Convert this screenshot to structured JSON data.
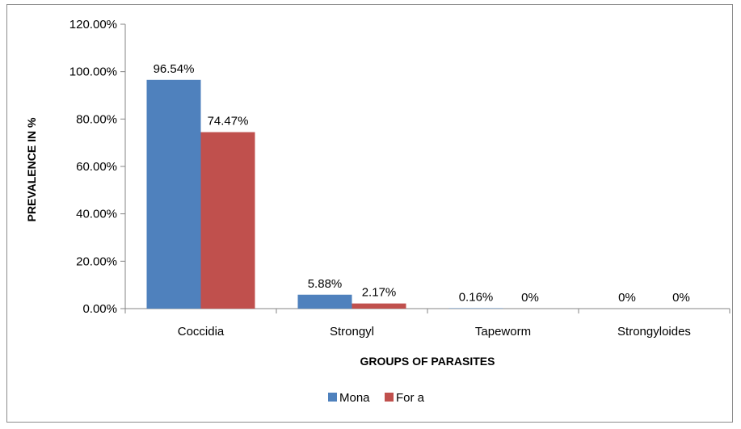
{
  "chart_data": {
    "type": "bar",
    "categories": [
      "Coccidia",
      "Strongyl",
      "Tapeworm",
      "Strongyloides"
    ],
    "series": [
      {
        "name": "Mona",
        "values": [
          96.54,
          5.88,
          0.16,
          0
        ],
        "labels": [
          "96.54%",
          "5.88%",
          "0.16%",
          "0%"
        ],
        "color": "#4F81BD"
      },
      {
        "name": "For a",
        "values": [
          74.47,
          2.17,
          0,
          0
        ],
        "labels": [
          "74.47%",
          "2.17%",
          "0%",
          "0%"
        ],
        "color": "#C0504D"
      }
    ],
    "xlabel": "GROUPS OF PARASITES",
    "ylabel": "PREVALENCE IN %",
    "ylim": [
      0,
      120
    ],
    "yticks": [
      "0.00%",
      "20.00%",
      "40.00%",
      "60.00%",
      "80.00%",
      "100.00%",
      "120.00%"
    ],
    "grid": false,
    "legend": "bottom"
  }
}
